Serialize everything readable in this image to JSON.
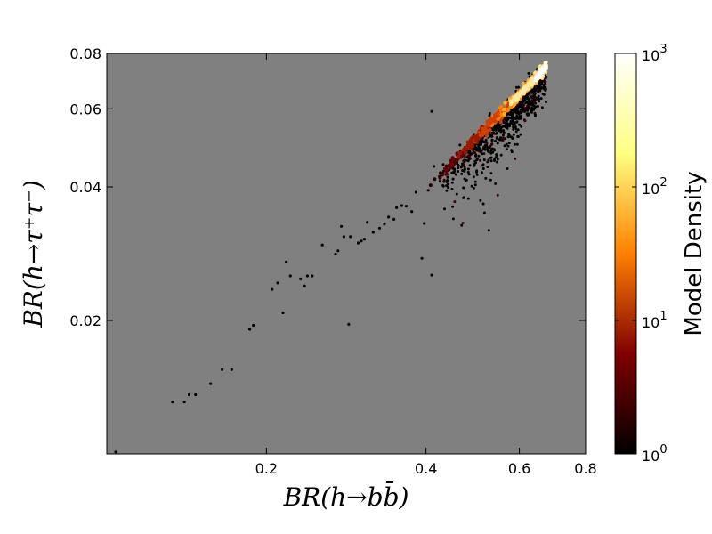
{
  "chart_data": {
    "type": "scatter",
    "style": "hexbin density on log-log axes",
    "xlabel": "BR(h→bb̄)",
    "ylabel": "BR(h→τ⁺τ⁻)",
    "xscale": "log",
    "yscale": "log",
    "xlim": [
      0.1,
      0.8
    ],
    "ylim": [
      0.01,
      0.08
    ],
    "x_ticks": [
      {
        "value": 0.2,
        "label": "0.2"
      },
      {
        "value": 0.4,
        "label": "0.4"
      },
      {
        "value": 0.6,
        "label": "0.6"
      },
      {
        "value": 0.8,
        "label": "0.8"
      }
    ],
    "y_ticks": [
      {
        "value": 0.02,
        "label": "0.02"
      },
      {
        "value": 0.04,
        "label": "0.04"
      },
      {
        "value": 0.06,
        "label": "0.06"
      },
      {
        "value": 0.08,
        "label": "0.08"
      }
    ],
    "background_color": "#808080",
    "colorbar": {
      "label": "Model Density",
      "scale": "log",
      "range": [
        1,
        1000
      ],
      "colormap": "afmhot",
      "ticks": [
        {
          "value": 1,
          "base": "10",
          "exp": "0"
        },
        {
          "value": 10,
          "base": "10",
          "exp": "1"
        },
        {
          "value": 100,
          "base": "10",
          "exp": "2"
        },
        {
          "value": 1000,
          "base": "10",
          "exp": "3"
        }
      ]
    },
    "sparse_points": [
      [
        0.104,
        0.0101
      ],
      [
        0.133,
        0.0131
      ],
      [
        0.14,
        0.0131
      ],
      [
        0.143,
        0.0136
      ],
      [
        0.147,
        0.0136
      ],
      [
        0.157,
        0.0144
      ],
      [
        0.165,
        0.0155
      ],
      [
        0.172,
        0.0155
      ],
      [
        0.186,
        0.0191
      ],
      [
        0.189,
        0.0195
      ],
      [
        0.205,
        0.0235
      ],
      [
        0.21,
        0.0243
      ],
      [
        0.215,
        0.0208
      ],
      [
        0.218,
        0.0271
      ],
      [
        0.222,
        0.0252
      ],
      [
        0.232,
        0.0248
      ],
      [
        0.236,
        0.0239
      ],
      [
        0.239,
        0.0252
      ],
      [
        0.244,
        0.0252
      ],
      [
        0.255,
        0.0296
      ],
      [
        0.27,
        0.0282
      ],
      [
        0.273,
        0.0287
      ],
      [
        0.277,
        0.0326
      ],
      [
        0.28,
        0.0309
      ],
      [
        0.286,
        0.0196
      ],
      [
        0.288,
        0.0309
      ],
      [
        0.298,
        0.0299
      ],
      [
        0.302,
        0.0302
      ],
      [
        0.306,
        0.0305
      ],
      [
        0.31,
        0.0333
      ],
      [
        0.318,
        0.0316
      ],
      [
        0.327,
        0.0323
      ],
      [
        0.334,
        0.033
      ],
      [
        0.34,
        0.0342
      ],
      [
        0.348,
        0.0338
      ],
      [
        0.352,
        0.0359
      ],
      [
        0.36,
        0.0363
      ],
      [
        0.367,
        0.0362
      ],
      [
        0.376,
        0.0352
      ],
      [
        0.383,
        0.0389
      ],
      [
        0.393,
        0.0276
      ],
      [
        0.41,
        0.0253
      ],
      [
        0.397,
        0.0331
      ],
      [
        0.414,
        0.0445
      ],
      [
        0.404,
        0.0393
      ],
      [
        0.425,
        0.0412
      ],
      [
        0.41,
        0.0592
      ]
    ],
    "main_band": {
      "description": "dense diagonal ridge of models",
      "from": [
        0.4,
        0.0395
      ],
      "to": [
        0.675,
        0.0745
      ],
      "peak_density": 1000
    },
    "scatter_cloud": {
      "description": "spread of low-density models around the ridge",
      "x_range": [
        0.45,
        0.675
      ],
      "y_range": [
        0.033,
        0.072
      ]
    }
  }
}
